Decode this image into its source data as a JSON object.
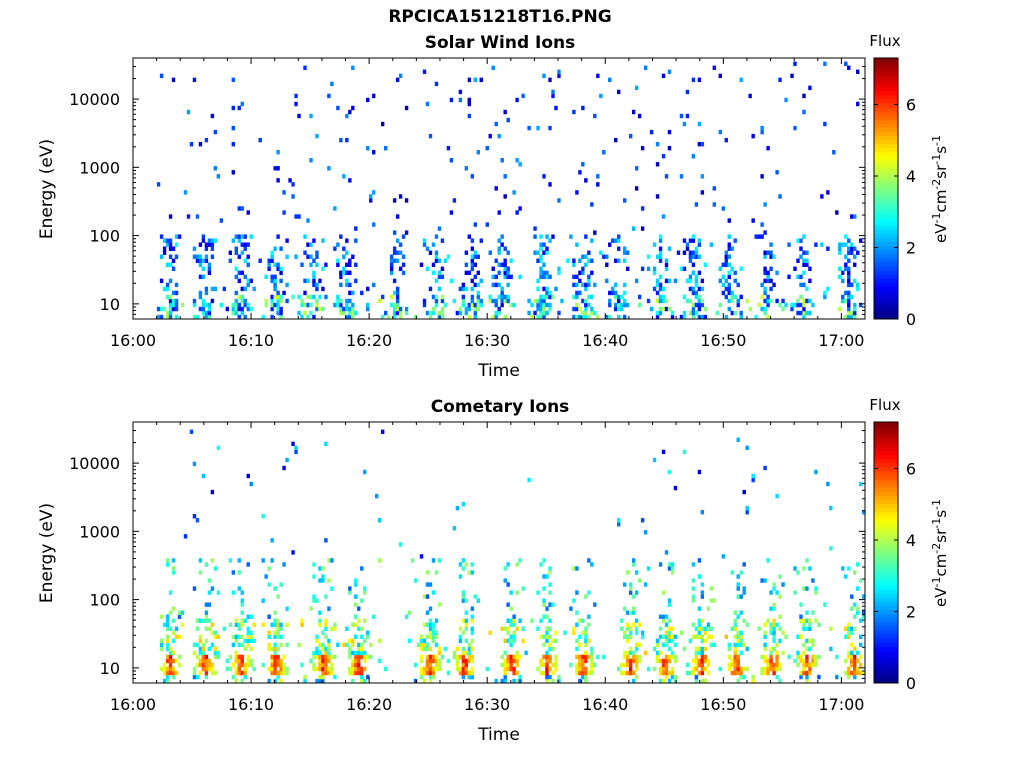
{
  "figure_title": "RPCICA151218T16.PNG",
  "colors": {
    "axes": "#000000",
    "background": "#ffffff",
    "colormap": "jet"
  },
  "chart_data": [
    {
      "type": "heatmap",
      "title": "Solar Wind Ions",
      "xlabel": "Time",
      "ylabel": "Energy (eV)",
      "y_scale": "log",
      "ylim": [
        6,
        40000
      ],
      "yticks": [
        10,
        100,
        1000,
        10000
      ],
      "ytick_labels": [
        "10",
        "100",
        "1000",
        "10000"
      ],
      "x_range": [
        "16:00",
        "17:02"
      ],
      "xtick_labels": [
        "16:00",
        "16:10",
        "16:20",
        "16:30",
        "16:40",
        "16:50",
        "17:00"
      ],
      "colorbar": {
        "label_top": "Flux",
        "label": "eV-1cm-2sr-1s-1",
        "range": [
          0,
          7.3
        ],
        "ticks": [
          0,
          2,
          4,
          6
        ],
        "tick_labels": [
          "0",
          "2",
          "4",
          "6"
        ]
      },
      "pattern": "sparse low-flux counts spanning all energies with intermittent low-energy bursts below 100 eV roughly every 2-4 minutes",
      "peak_flux_approx": 4.5
    },
    {
      "type": "heatmap",
      "title": "Cometary Ions",
      "xlabel": "Time",
      "ylabel": "Energy (eV)",
      "y_scale": "log",
      "ylim": [
        6,
        40000
      ],
      "yticks": [
        10,
        100,
        1000,
        10000
      ],
      "ytick_labels": [
        "10",
        "100",
        "1000",
        "10000"
      ],
      "x_range": [
        "16:00",
        "17:02"
      ],
      "xtick_labels": [
        "16:00",
        "16:10",
        "16:20",
        "16:30",
        "16:40",
        "16:50",
        "17:00"
      ],
      "colorbar": {
        "label_top": "Flux",
        "label": "eV-1cm-2sr-1s-1",
        "range": [
          0,
          7.3
        ],
        "ticks": [
          0,
          2,
          4,
          6
        ],
        "tick_labels": [
          "0",
          "2",
          "4",
          "6"
        ]
      },
      "pattern": "periodic intense bursts between 15 and 40 eV (flux up to about 7) with tails to a few hundred eV, sparse counts above 1000 eV",
      "burst_times": [
        "16:03",
        "16:06",
        "16:09",
        "16:12",
        "16:16",
        "16:19",
        "16:25",
        "16:28",
        "16:32",
        "16:35",
        "16:38",
        "16:42",
        "16:45",
        "16:48",
        "16:51",
        "16:54",
        "16:57",
        "17:01"
      ],
      "peak_flux_approx": 7.0
    }
  ]
}
